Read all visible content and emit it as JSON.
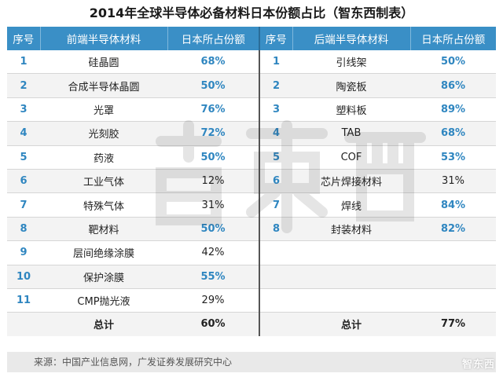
{
  "title": "2014年全球半导体必备材料日本份额占比（智东西制表）",
  "header": {
    "seq": "序号",
    "front": "前端半导体材料",
    "share": "日本所占份额",
    "back": "后端半导体材料"
  },
  "rows": [
    {
      "ln": "1",
      "lname": "硅晶圆",
      "lval": "68%",
      "rn": "1",
      "rname": "引线架",
      "rval": "50%"
    },
    {
      "ln": "2",
      "lname": "合成半导体晶圆",
      "lval": "50%",
      "rn": "2",
      "rname": "陶瓷板",
      "rval": "86%"
    },
    {
      "ln": "3",
      "lname": "光罩",
      "lval": "76%",
      "rn": "3",
      "rname": "塑料板",
      "rval": "89%"
    },
    {
      "ln": "4",
      "lname": "光刻胶",
      "lval": "72%",
      "rn": "4",
      "rname": "TAB",
      "rval": "68%"
    },
    {
      "ln": "5",
      "lname": "药液",
      "lval": "50%",
      "rn": "5",
      "rname": "COF",
      "rval": "53%"
    },
    {
      "ln": "6",
      "lname": "工业气体",
      "lval": "12%",
      "rn": "6",
      "rname": "芯片焊接材料",
      "rval": "31%"
    },
    {
      "ln": "7",
      "lname": "特殊气体",
      "lval": "31%",
      "rn": "7",
      "rname": "焊线",
      "rval": "84%"
    },
    {
      "ln": "8",
      "lname": "靶材料",
      "lval": "50%",
      "rn": "8",
      "rname": "封装材料",
      "rval": "82%"
    },
    {
      "ln": "9",
      "lname": "层间绝缘涂膜",
      "lval": "42%",
      "rn": "",
      "rname": "",
      "rval": ""
    },
    {
      "ln": "10",
      "lname": "保护涂膜",
      "lval": "55%",
      "rn": "",
      "rname": "",
      "rval": ""
    },
    {
      "ln": "11",
      "lname": "CMP抛光液",
      "lval": "29%",
      "rn": "",
      "rname": "",
      "rval": ""
    }
  ],
  "total": {
    "label": "总计",
    "left": "60%",
    "right": "77%"
  },
  "source": "来源：中国产业信息网，广发证券发展研究中心",
  "watermark": "智东西",
  "colors": {
    "header": "#3a8fc6",
    "highlight": "#2f86c0"
  }
}
